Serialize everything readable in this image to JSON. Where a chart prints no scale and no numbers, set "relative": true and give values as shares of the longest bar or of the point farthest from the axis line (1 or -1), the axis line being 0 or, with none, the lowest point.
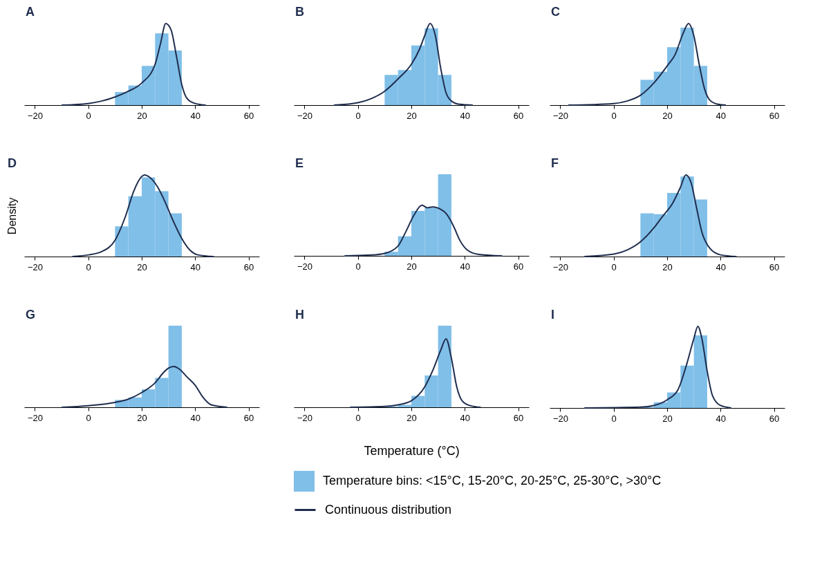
{
  "chart_data": [
    {
      "type": "histogram",
      "title": "A",
      "relative": true,
      "xlim": [
        -24,
        64
      ],
      "xticks": [
        -20,
        0,
        20,
        40,
        60
      ],
      "series": [
        {
          "color": "#80bfe8",
          "bins": [
            10,
            15,
            20,
            25,
            30,
            35
          ],
          "values": [
            0.16,
            0.24,
            0.48,
            0.88,
            0.67
          ]
        },
        {
          "type": "line",
          "color": "#1f2d4e",
          "x": [
            -10,
            0,
            5,
            10,
            15,
            20,
            25,
            27,
            29,
            31,
            33,
            35,
            37,
            40,
            44
          ],
          "values": [
            0,
            0.02,
            0.05,
            0.1,
            0.17,
            0.27,
            0.5,
            0.75,
            1.0,
            0.92,
            0.6,
            0.25,
            0.08,
            0.02,
            0
          ]
        }
      ]
    },
    {
      "type": "histogram",
      "title": "B",
      "relative": true,
      "xlim": [
        -24,
        64
      ],
      "xticks": [
        -20,
        0,
        20,
        40,
        60
      ],
      "series": [
        {
          "color": "#80bfe8",
          "bins": [
            10,
            15,
            20,
            25,
            30,
            35
          ],
          "values": [
            0.37,
            0.43,
            0.73,
            0.94,
            0.37
          ]
        },
        {
          "type": "line",
          "color": "#1f2d4e",
          "x": [
            -9,
            0,
            5,
            10,
            15,
            20,
            23,
            25,
            27,
            29,
            31,
            33,
            35,
            38,
            43
          ],
          "values": [
            0,
            0.03,
            0.08,
            0.17,
            0.32,
            0.5,
            0.68,
            0.85,
            1.0,
            0.85,
            0.45,
            0.15,
            0.05,
            0.01,
            0
          ]
        }
      ]
    },
    {
      "type": "histogram",
      "title": "C",
      "relative": true,
      "xlim": [
        -24,
        64
      ],
      "xticks": [
        -20,
        0,
        20,
        40,
        60
      ],
      "series": [
        {
          "color": "#80bfe8",
          "bins": [
            10,
            15,
            20,
            25,
            30,
            35
          ],
          "values": [
            0.31,
            0.41,
            0.71,
            0.95,
            0.48
          ]
        },
        {
          "type": "line",
          "color": "#1f2d4e",
          "x": [
            -17,
            0,
            5,
            10,
            15,
            20,
            23,
            26,
            28,
            30,
            32,
            34,
            36,
            39,
            42
          ],
          "values": [
            0,
            0.02,
            0.05,
            0.12,
            0.27,
            0.48,
            0.62,
            0.88,
            1.0,
            0.85,
            0.5,
            0.2,
            0.06,
            0.01,
            0
          ]
        }
      ]
    },
    {
      "type": "histogram",
      "title": "D",
      "ylabel": "Density",
      "relative": true,
      "xlim": [
        -24,
        64
      ],
      "xticks": [
        -20,
        0,
        20,
        40,
        60
      ],
      "series": [
        {
          "color": "#80bfe8",
          "bins": [
            10,
            15,
            20,
            25,
            30,
            35
          ],
          "values": [
            0.37,
            0.74,
            0.97,
            0.8,
            0.53
          ]
        },
        {
          "type": "line",
          "color": "#1f2d4e",
          "x": [
            -6,
            0,
            5,
            10,
            14,
            17,
            20,
            21,
            23,
            26,
            29,
            32,
            35,
            38,
            41,
            47
          ],
          "values": [
            0,
            0.02,
            0.06,
            0.2,
            0.5,
            0.8,
            0.98,
            1.0,
            0.97,
            0.85,
            0.65,
            0.42,
            0.22,
            0.08,
            0.02,
            0
          ]
        }
      ]
    },
    {
      "type": "histogram",
      "title": "E",
      "relative": true,
      "xlim": [
        -24,
        64
      ],
      "xticks": [
        -20,
        0,
        20,
        40,
        60
      ],
      "series": [
        {
          "color": "#80bfe8",
          "bins": [
            10,
            15,
            20,
            25,
            30,
            35
          ],
          "values": [
            0.05,
            0.24,
            0.55,
            0.59,
            1.0
          ]
        },
        {
          "type": "line",
          "color": "#1f2d4e",
          "x": [
            -5,
            5,
            10,
            15,
            18,
            21,
            24,
            26,
            28,
            31,
            33,
            36,
            38,
            41,
            45,
            54
          ],
          "values": [
            0,
            0.01,
            0.03,
            0.12,
            0.3,
            0.5,
            0.62,
            0.59,
            0.6,
            0.57,
            0.52,
            0.35,
            0.2,
            0.07,
            0.02,
            0
          ]
        }
      ]
    },
    {
      "type": "histogram",
      "title": "F",
      "relative": true,
      "xlim": [
        -24,
        64
      ],
      "xticks": [
        -20,
        0,
        20,
        40,
        60
      ],
      "series": [
        {
          "color": "#80bfe8",
          "bins": [
            10,
            15,
            20,
            25,
            30,
            35
          ],
          "values": [
            0.53,
            0.52,
            0.78,
            0.98,
            0.7
          ]
        },
        {
          "type": "line",
          "color": "#1f2d4e",
          "x": [
            -11,
            0,
            5,
            10,
            15,
            18,
            22,
            25,
            27,
            29,
            31,
            33,
            36,
            40,
            46
          ],
          "values": [
            0,
            0.03,
            0.08,
            0.18,
            0.35,
            0.48,
            0.65,
            0.85,
            1.0,
            0.9,
            0.6,
            0.3,
            0.1,
            0.02,
            0
          ]
        }
      ]
    },
    {
      "type": "histogram",
      "title": "G",
      "relative": true,
      "xlim": [
        -24,
        64
      ],
      "xticks": [
        -20,
        0,
        20,
        40,
        60
      ],
      "series": [
        {
          "color": "#80bfe8",
          "bins": [
            10,
            15,
            20,
            25,
            30,
            35
          ],
          "values": [
            0.09,
            0.12,
            0.22,
            0.36,
            1.0
          ]
        },
        {
          "type": "line",
          "color": "#1f2d4e",
          "x": [
            -10,
            0,
            10,
            15,
            20,
            25,
            28,
            30,
            32,
            34,
            37,
            40,
            43,
            46,
            52
          ],
          "values": [
            0,
            0.02,
            0.06,
            0.1,
            0.18,
            0.3,
            0.42,
            0.48,
            0.5,
            0.47,
            0.37,
            0.27,
            0.12,
            0.03,
            0
          ]
        }
      ]
    },
    {
      "type": "histogram",
      "title": "H",
      "xlabel": "Temperature (°C)",
      "relative": true,
      "legend": "bottom",
      "xlim": [
        -24,
        64
      ],
      "xticks": [
        -20,
        0,
        20,
        40,
        60
      ],
      "series": [
        {
          "name": "Temperature bins: <15°C, 15-20°C, 20-25°C, 25-30°C, >30°C",
          "color": "#80bfe8",
          "bins": [
            10,
            15,
            20,
            25,
            30,
            35
          ],
          "values": [
            0.01,
            0.03,
            0.14,
            0.39,
            1.0
          ]
        },
        {
          "type": "line",
          "name": "Continuous distribution",
          "color": "#1f2d4e",
          "x": [
            -3,
            10,
            15,
            20,
            25,
            28,
            31,
            33,
            35,
            37,
            39,
            42,
            46
          ],
          "values": [
            0,
            0.01,
            0.03,
            0.08,
            0.25,
            0.45,
            0.7,
            0.84,
            0.6,
            0.25,
            0.08,
            0.02,
            0
          ]
        }
      ]
    },
    {
      "type": "histogram",
      "title": "I",
      "relative": true,
      "xlim": [
        -24,
        64
      ],
      "xticks": [
        -20,
        0,
        20,
        40,
        60
      ],
      "series": [
        {
          "color": "#80bfe8",
          "bins": [
            10,
            15,
            20,
            25,
            30,
            35
          ],
          "values": [
            0.01,
            0.07,
            0.19,
            0.52,
            0.89
          ]
        },
        {
          "type": "line",
          "color": "#1f2d4e",
          "x": [
            -11,
            10,
            15,
            20,
            24,
            27,
            30,
            31.5,
            33,
            35,
            37,
            40,
            44
          ],
          "values": [
            0,
            0.01,
            0.03,
            0.1,
            0.22,
            0.5,
            0.85,
            1.0,
            0.85,
            0.45,
            0.15,
            0.03,
            0
          ]
        }
      ]
    }
  ]
}
